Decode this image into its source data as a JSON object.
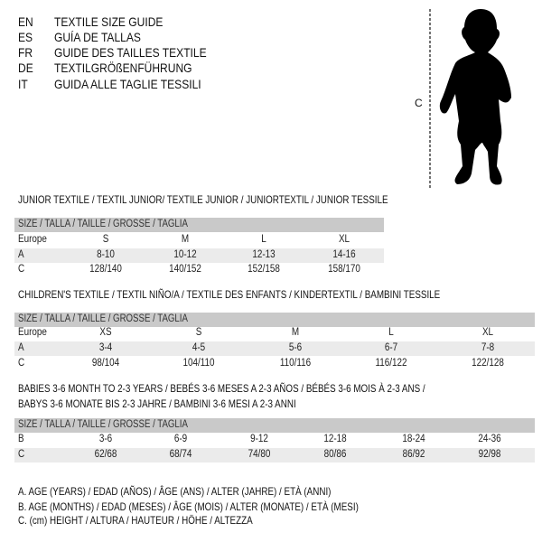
{
  "languages": [
    {
      "code": "EN",
      "label": "TEXTILE SIZE GUIDE"
    },
    {
      "code": "ES",
      "label": "GUÍA DE TALLAS"
    },
    {
      "code": "FR",
      "label": "GUIDE DES TAILLES TEXTILE"
    },
    {
      "code": "DE",
      "label": "TEXTILGRÖßENFÜHRUNG"
    },
    {
      "code": "IT",
      "label": "GUIDA ALLE TAGLIE TESSILI"
    }
  ],
  "figure": {
    "measure_label": "C",
    "icon": "baby-silhouette"
  },
  "tables": [
    {
      "title": [
        "JUNIOR TEXTILE / TEXTIL JUNIOR/ TEXTILE JUNIOR / JUNIORTEXTIL / JUNIOR TESSILE"
      ],
      "header": "SIZE / TALLA / TAILLE / GRÖSSE / TAGLIA",
      "rows": [
        {
          "label": "Europe",
          "values": [
            "S",
            "M",
            "L",
            "XL"
          ]
        },
        {
          "label": "A",
          "values": [
            "8-10",
            "10-12",
            "12-13",
            "14-16"
          ]
        },
        {
          "label": "C",
          "values": [
            "128/140",
            "140/152",
            "152/158",
            "158/170"
          ]
        }
      ]
    },
    {
      "title": [
        "CHILDREN'S TEXTILE / TEXTIL NIÑO/A / TEXTILE DES ENFANTS / KINDERTEXTIL / BAMBINI TESSILE"
      ],
      "header": "SIZE / TALLA / TAILLE / GRÖSSE / TAGLIA",
      "rows": [
        {
          "label": "Europe",
          "values": [
            "XS",
            "S",
            "M",
            "L",
            "XL"
          ]
        },
        {
          "label": "A",
          "values": [
            "3-4",
            "4-5",
            "5-6",
            "6-7",
            "7-8"
          ]
        },
        {
          "label": "C",
          "values": [
            "98/104",
            "104/110",
            "110/116",
            "116/122",
            "122/128"
          ]
        }
      ]
    },
    {
      "title": [
        "BABIES 3-6 MONTH TO 2-3 YEARS / BEBÉS 3-6 MESES A 2-3 AÑOS / BÉBÉS 3-6 MOIS À 2-3 ANS /",
        "BABYS 3-6 MONATE BIS 2-3 JAHRE / BAMBINI 3-6 MESI A 2-3 ANNI"
      ],
      "header": "SIZE / TALLA / TAILLE / GRÖSSE / TAGLIA",
      "rows": [
        {
          "label": "B",
          "values": [
            "3-6",
            "6-9",
            "9-12",
            "12-18",
            "18-24",
            "24-36"
          ]
        },
        {
          "label": "C",
          "values": [
            "62/68",
            "68/74",
            "74/80",
            "80/86",
            "86/92",
            "92/98"
          ]
        }
      ]
    }
  ],
  "legend": [
    "A. AGE (YEARS) / EDAD (AÑOS) / ÂGE (ANS) / ALTER (JAHRE) / ETÀ (ANNI)",
    "B. AGE (MONTHS) / EDAD (MESES) / ÂGE (MOIS) / ALTER (MONATE) / ETÀ (MESI)",
    "C. (cm) HEIGHT / ALTURA / HAUTEUR / HÖHE / ALTEZZA"
  ]
}
